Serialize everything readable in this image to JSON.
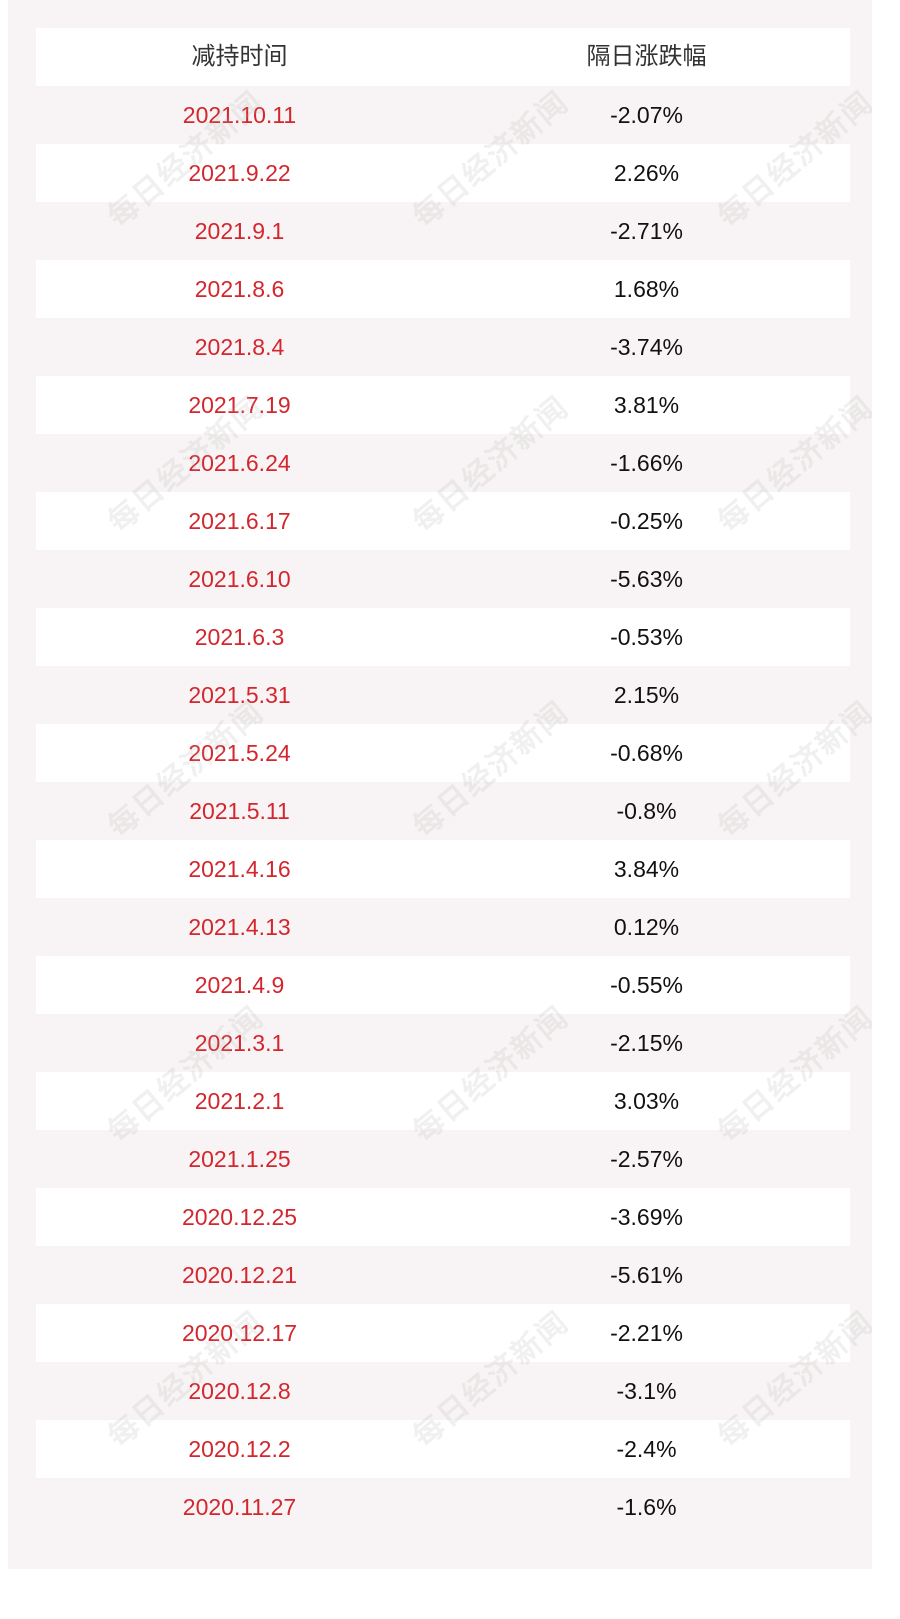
{
  "table": {
    "header": {
      "date_col": "减持时间",
      "change_col": "隔日涨跌幅"
    },
    "rows": [
      {
        "date": "2021.10.11",
        "change": "-2.07%"
      },
      {
        "date": "2021.9.22",
        "change": "2.26%"
      },
      {
        "date": "2021.9.1",
        "change": "-2.71%"
      },
      {
        "date": "2021.8.6",
        "change": "1.68%"
      },
      {
        "date": "2021.8.4",
        "change": "-3.74%"
      },
      {
        "date": "2021.7.19",
        "change": "3.81%"
      },
      {
        "date": "2021.6.24",
        "change": "-1.66%"
      },
      {
        "date": "2021.6.17",
        "change": "-0.25%"
      },
      {
        "date": "2021.6.10",
        "change": "-5.63%"
      },
      {
        "date": "2021.6.3",
        "change": "-0.53%"
      },
      {
        "date": "2021.5.31",
        "change": "2.15%"
      },
      {
        "date": "2021.5.24",
        "change": "-0.68%"
      },
      {
        "date": "2021.5.11",
        "change": "-0.8%"
      },
      {
        "date": "2021.4.16",
        "change": "3.84%"
      },
      {
        "date": "2021.4.13",
        "change": "0.12%"
      },
      {
        "date": "2021.4.9",
        "change": "-0.55%"
      },
      {
        "date": "2021.3.1",
        "change": "-2.15%"
      },
      {
        "date": "2021.2.1",
        "change": "3.03%"
      },
      {
        "date": "2021.1.25",
        "change": "-2.57%"
      },
      {
        "date": "2020.12.25",
        "change": "-3.69%"
      },
      {
        "date": "2020.12.21",
        "change": "-5.61%"
      },
      {
        "date": "2020.12.17",
        "change": "-2.21%"
      },
      {
        "date": "2020.12.8",
        "change": "-3.1%"
      },
      {
        "date": "2020.12.2",
        "change": "-2.4%"
      },
      {
        "date": "2020.11.27",
        "change": "-1.6%"
      }
    ]
  },
  "watermark": {
    "text": "每日经济新闻"
  },
  "colors": {
    "date_text": "#d3262d",
    "change_text": "#111111",
    "header_text": "#333333",
    "panel_bg": "#f8f4f5",
    "row_white": "#ffffff"
  }
}
